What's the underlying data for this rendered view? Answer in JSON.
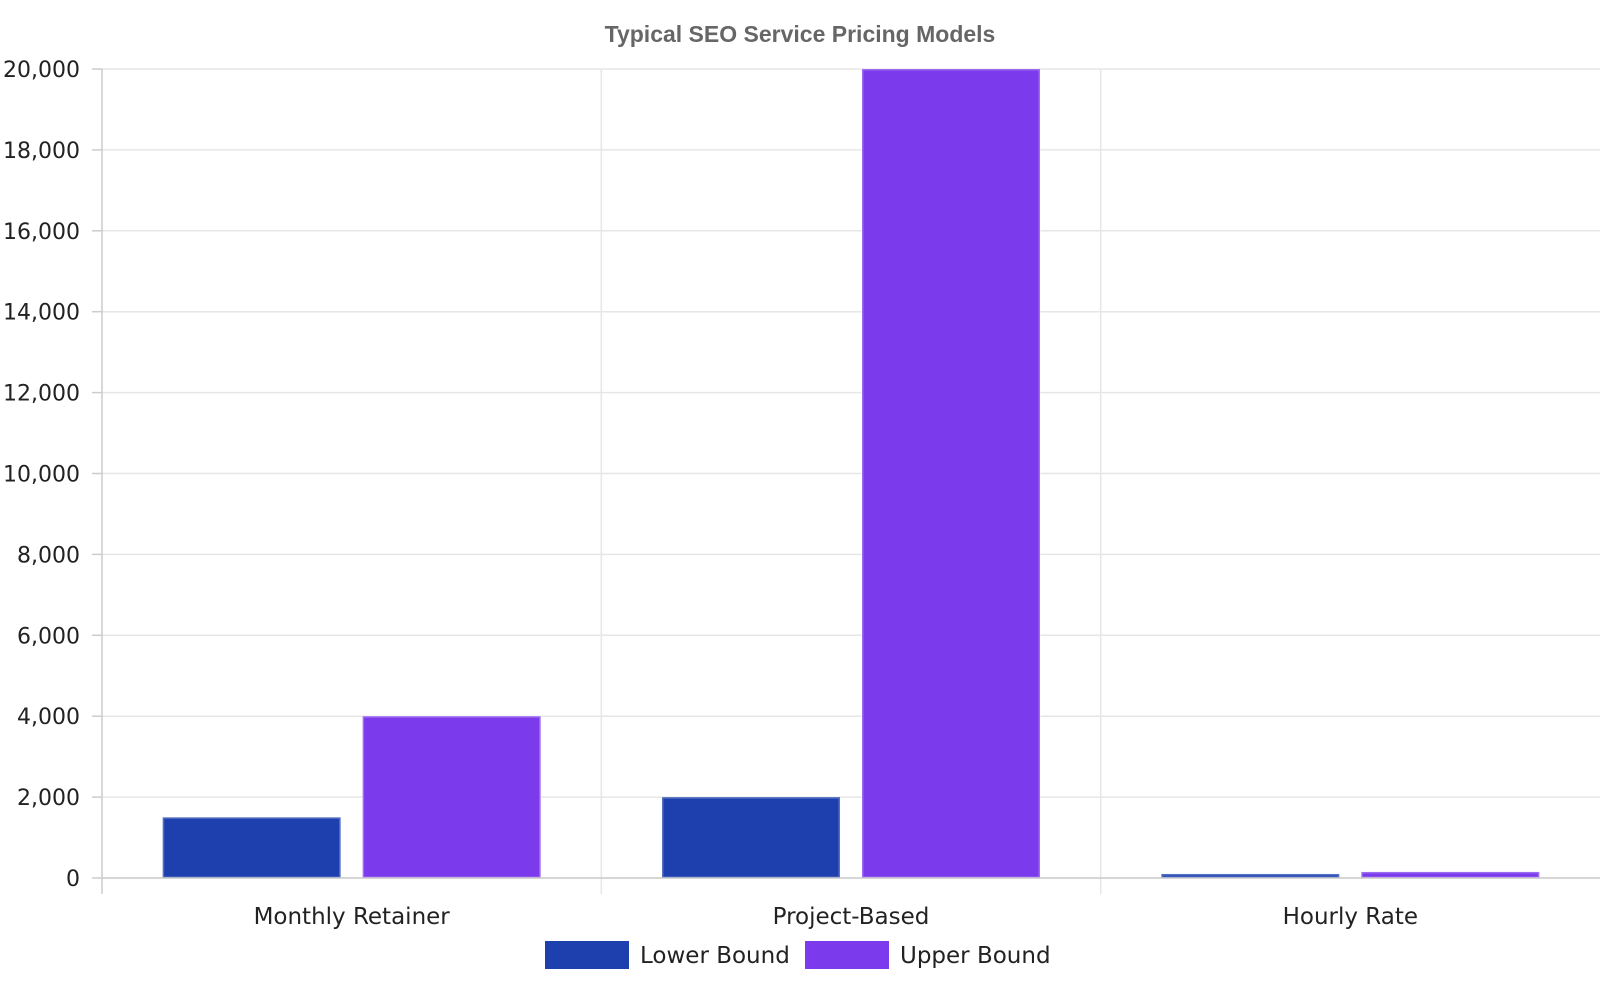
{
  "chart_data": {
    "type": "bar",
    "title": "Typical SEO Service Pricing Models",
    "categories": [
      "Monthly Retainer",
      "Project-Based",
      "Hourly Rate"
    ],
    "series": [
      {
        "name": "Lower Bound",
        "values": [
          1500,
          2000,
          100
        ],
        "color": "#1e40af"
      },
      {
        "name": "Upper Bound",
        "values": [
          4000,
          20000,
          150
        ],
        "color": "#7c3aed"
      }
    ],
    "ylim": [
      0,
      20000
    ],
    "yticks": [
      "0",
      "2,000",
      "4,000",
      "6,000",
      "8,000",
      "10,000",
      "12,000",
      "14,000",
      "16,000",
      "18,000",
      "20,000"
    ],
    "grid": true,
    "legend": "bottom-center"
  }
}
